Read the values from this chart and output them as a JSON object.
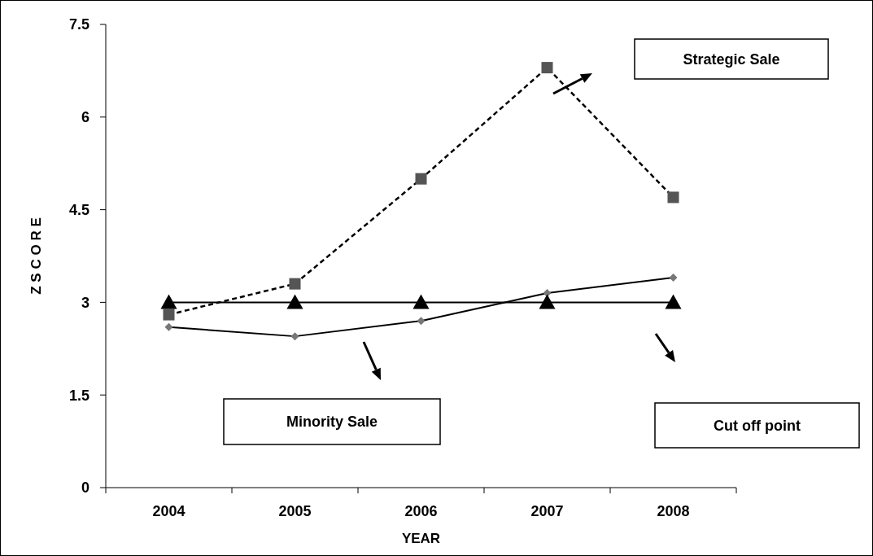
{
  "chart_data": {
    "type": "line",
    "xlabel": "YEAR",
    "ylabel": "Z S C O R E",
    "categories": [
      "2004",
      "2005",
      "2006",
      "2007",
      "2008"
    ],
    "ylim": [
      0,
      7.5
    ],
    "yticks": [
      0,
      1.5,
      3,
      4.5,
      6,
      7.5
    ],
    "grid": false,
    "series": [
      {
        "name": "Strategic Sale",
        "color": "#555555",
        "marker": "square",
        "line_style": "dashed",
        "values": [
          2.8,
          3.3,
          5.0,
          6.8,
          4.7
        ]
      },
      {
        "name": "Minority Sale",
        "color": "#777777",
        "marker": "diamond",
        "line_style": "solid",
        "values": [
          2.6,
          2.45,
          2.7,
          3.15,
          3.4
        ]
      },
      {
        "name": "Cut off point",
        "color": "#000000",
        "marker": "triangle",
        "line_style": "solid",
        "values": [
          3,
          3,
          3,
          3,
          3
        ]
      }
    ]
  }
}
